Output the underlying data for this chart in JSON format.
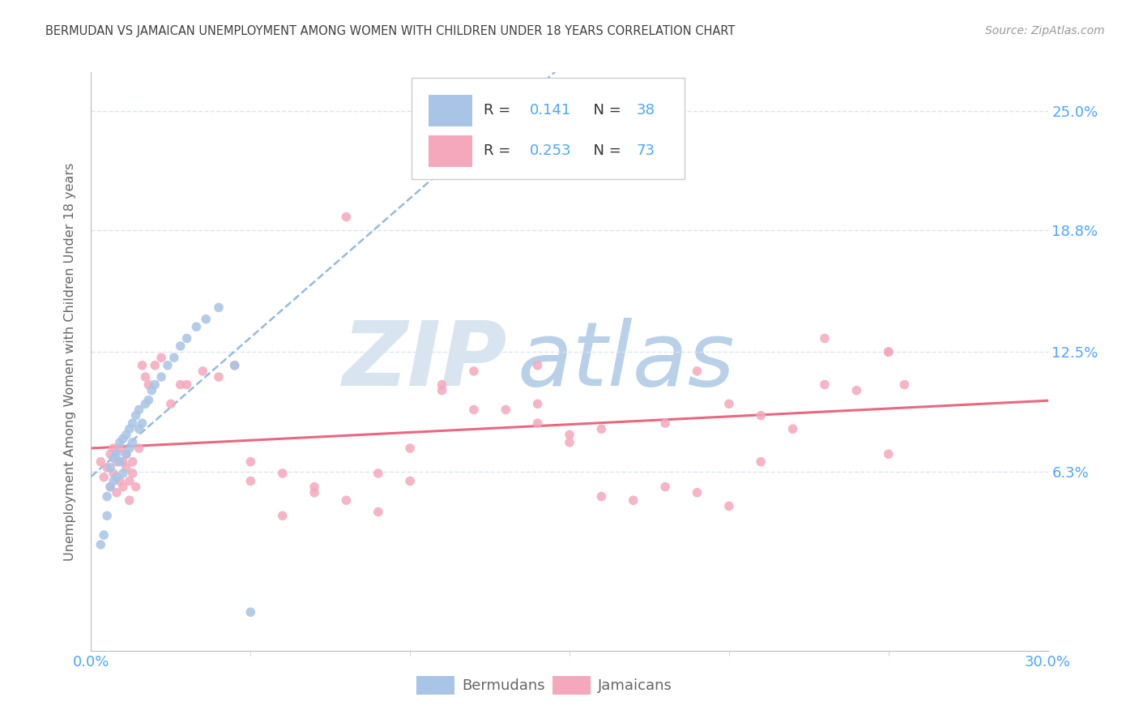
{
  "title": "BERMUDAN VS JAMAICAN UNEMPLOYMENT AMONG WOMEN WITH CHILDREN UNDER 18 YEARS CORRELATION CHART",
  "source": "Source: ZipAtlas.com",
  "ylabel": "Unemployment Among Women with Children Under 18 years",
  "ytick_labels": [
    "25.0%",
    "18.8%",
    "12.5%",
    "6.3%"
  ],
  "ytick_values": [
    0.25,
    0.188,
    0.125,
    0.063
  ],
  "xlim": [
    0.0,
    0.3
  ],
  "ylim": [
    -0.03,
    0.27
  ],
  "r_bermuda": "0.141",
  "n_bermuda": "38",
  "r_jamaica": "0.253",
  "n_jamaica": "73",
  "bermuda_color": "#a8c4e6",
  "jamaica_color": "#f5a8bc",
  "bermuda_line_color": "#8ab4d8",
  "jamaica_line_color": "#e8607a",
  "background_color": "#ffffff",
  "title_color": "#404040",
  "source_color": "#999999",
  "axis_label_color": "#4da6ff",
  "grid_color": "#dde4ee",
  "ylabel_color": "#666666",
  "legend_text_color": "#333333",
  "bottom_legend_color": "#666666",
  "bermuda_x": [
    0.003,
    0.004,
    0.005,
    0.005,
    0.006,
    0.006,
    0.007,
    0.007,
    0.008,
    0.008,
    0.009,
    0.009,
    0.01,
    0.01,
    0.011,
    0.011,
    0.012,
    0.012,
    0.013,
    0.013,
    0.014,
    0.015,
    0.015,
    0.016,
    0.017,
    0.018,
    0.019,
    0.02,
    0.022,
    0.024,
    0.026,
    0.028,
    0.03,
    0.033,
    0.036,
    0.04,
    0.045,
    0.05
  ],
  "bermuda_y": [
    0.025,
    0.03,
    0.04,
    0.05,
    0.055,
    0.065,
    0.058,
    0.07,
    0.06,
    0.072,
    0.068,
    0.078,
    0.062,
    0.08,
    0.072,
    0.082,
    0.075,
    0.085,
    0.078,
    0.088,
    0.092,
    0.085,
    0.095,
    0.088,
    0.098,
    0.1,
    0.105,
    0.108,
    0.112,
    0.118,
    0.122,
    0.128,
    0.132,
    0.138,
    0.142,
    0.148,
    0.118,
    -0.01
  ],
  "jamaica_x": [
    0.003,
    0.004,
    0.005,
    0.006,
    0.006,
    0.007,
    0.007,
    0.008,
    0.008,
    0.009,
    0.009,
    0.01,
    0.01,
    0.011,
    0.011,
    0.012,
    0.012,
    0.013,
    0.013,
    0.014,
    0.015,
    0.016,
    0.017,
    0.018,
    0.02,
    0.022,
    0.025,
    0.028,
    0.03,
    0.035,
    0.04,
    0.045,
    0.05,
    0.06,
    0.07,
    0.08,
    0.09,
    0.1,
    0.11,
    0.12,
    0.13,
    0.14,
    0.15,
    0.16,
    0.17,
    0.18,
    0.19,
    0.2,
    0.21,
    0.22,
    0.23,
    0.24,
    0.25,
    0.255,
    0.18,
    0.15,
    0.2,
    0.12,
    0.23,
    0.25,
    0.21,
    0.16,
    0.14,
    0.09,
    0.07,
    0.05,
    0.11,
    0.08,
    0.19,
    0.14,
    0.1,
    0.06,
    0.25
  ],
  "jamaica_y": [
    0.068,
    0.06,
    0.065,
    0.055,
    0.072,
    0.062,
    0.075,
    0.052,
    0.068,
    0.058,
    0.075,
    0.055,
    0.068,
    0.065,
    0.072,
    0.048,
    0.058,
    0.062,
    0.068,
    0.055,
    0.075,
    0.118,
    0.112,
    0.108,
    0.118,
    0.122,
    0.098,
    0.108,
    0.108,
    0.115,
    0.112,
    0.118,
    0.058,
    0.062,
    0.052,
    0.048,
    0.042,
    0.058,
    0.105,
    0.115,
    0.095,
    0.118,
    0.082,
    0.05,
    0.048,
    0.055,
    0.052,
    0.045,
    0.092,
    0.085,
    0.132,
    0.105,
    0.125,
    0.108,
    0.088,
    0.078,
    0.098,
    0.095,
    0.108,
    0.072,
    0.068,
    0.085,
    0.098,
    0.062,
    0.055,
    0.068,
    0.108,
    0.195,
    0.115,
    0.088,
    0.075,
    0.04,
    0.125
  ]
}
